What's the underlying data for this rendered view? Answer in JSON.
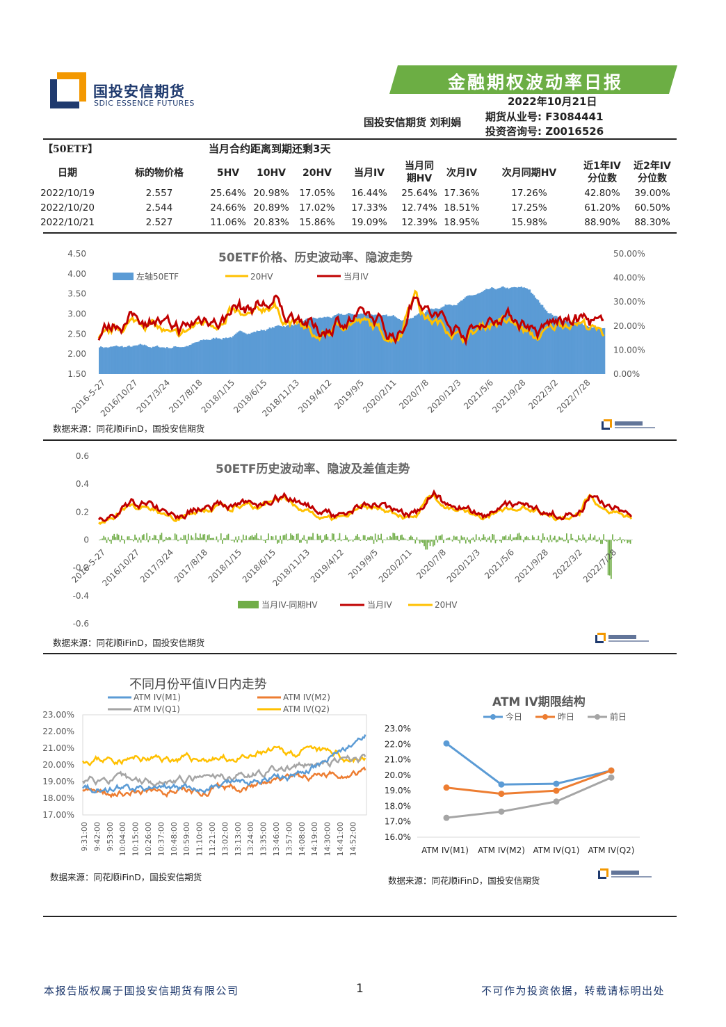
{
  "header": {
    "logo_cn": "国投安信期货",
    "logo_en": "SDIC ESSENCE FUTURES",
    "banner_title": "金融期权波动率日报",
    "date": "2022年10月21日",
    "author": "国投安信期货 刘利娟",
    "license1": "期货从业号: F3084441",
    "license2": "投资咨询号: Z0016526",
    "banner_color": "#6cae44"
  },
  "table": {
    "tag": "【50ETF】",
    "note": "当月合约距离到期还剩3天",
    "headers": [
      "日期",
      "标的物价格",
      "5HV",
      "10HV",
      "20HV",
      "当月IV",
      "当月同期HV",
      "次月IV",
      "次月同期HV",
      "近1年IV分位数",
      "近2年IV分位数"
    ],
    "header_lines": [
      [
        "日期"
      ],
      [
        "标的物价格"
      ],
      [
        "5HV"
      ],
      [
        "10HV"
      ],
      [
        "20HV"
      ],
      [
        "当月IV"
      ],
      [
        "当月同",
        "期HV"
      ],
      [
        "次月IV"
      ],
      [
        "次月同期HV"
      ],
      [
        "近1年IV",
        "分位数"
      ],
      [
        "近2年IV",
        "分位数"
      ]
    ],
    "rows": [
      [
        "2022/10/19",
        "2.557",
        "25.64%",
        "20.98%",
        "17.05%",
        "16.44%",
        "25.64%",
        "17.36%",
        "17.26%",
        "42.80%",
        "39.00%"
      ],
      [
        "2022/10/20",
        "2.544",
        "24.66%",
        "20.89%",
        "17.02%",
        "17.33%",
        "12.74%",
        "18.51%",
        "17.25%",
        "61.20%",
        "60.50%"
      ],
      [
        "2022/10/21",
        "2.527",
        "11.06%",
        "20.83%",
        "15.86%",
        "19.09%",
        "12.39%",
        "18.95%",
        "15.98%",
        "88.90%",
        "88.30%"
      ]
    ]
  },
  "source_text": "数据来源：同花顺iFinD，国投安信期货",
  "chart1": {
    "title": "50ETF价格、历史波动率、隐波走势",
    "legend": [
      "左轴50ETF",
      "20HV",
      "当月IV"
    ],
    "yleft_ticks": [
      "4.50",
      "4.00",
      "3.50",
      "3.00",
      "2.50",
      "2.00",
      "1.50"
    ],
    "yright_ticks": [
      "50.00%",
      "40.00%",
      "30.00%",
      "20.00%",
      "10.00%",
      "0.00%"
    ],
    "x_ticks": [
      "2016-5-27",
      "2016/10/27",
      "2017/3/24",
      "2017/8/18",
      "2018/1/15",
      "2018/6/15",
      "2018/11/13",
      "2019/4/12",
      "2019/9/5",
      "2020/2/11",
      "2020/7/8",
      "2020/12/3",
      "2021/5/6",
      "2021/9/28",
      "2022/3/2",
      "2022/7/28"
    ],
    "colors": {
      "etf": "#5b9bd5",
      "hv20": "#ffc000",
      "iv": "#c00000"
    }
  },
  "chart2": {
    "title": "50ETF历史波动率、隐波及差值走势",
    "legend": [
      "当月IV-同期HV",
      "当月IV",
      "20HV"
    ],
    "y_ticks": [
      "0.6",
      "0.4",
      "0.2",
      "0",
      "-0.2",
      "-0.4",
      "-0.6"
    ],
    "x_ticks": [
      "2016-5-27",
      "2016/10/27",
      "2017/3/24",
      "2017/8/18",
      "2018/1/15",
      "2018/6/15",
      "2018/11/13",
      "2019/4/12",
      "2019/9/5",
      "2020/2/11",
      "2020/7/8",
      "2020/12/3",
      "2021/5/6",
      "2021/9/28",
      "2022/3/2",
      "2022/7/28"
    ],
    "colors": {
      "diff": "#70ad47",
      "iv": "#c00000",
      "hv20": "#ffc000"
    }
  },
  "chart3": {
    "title": "不同月份平值IV日内走势",
    "legend": [
      "ATM IV(M1)",
      "ATM IV(M2)",
      "ATM IV(Q1)",
      "ATM IV(Q2)"
    ],
    "y_ticks": [
      "23.00%",
      "22.00%",
      "21.00%",
      "20.00%",
      "19.00%",
      "18.00%",
      "17.00%"
    ],
    "x_ticks": [
      "9:31:00",
      "9:42:00",
      "9:53:00",
      "10:04:00",
      "10:15:00",
      "10:26:00",
      "10:37:00",
      "10:48:00",
      "10:59:00",
      "11:10:00",
      "11:21:00",
      "13:02:00",
      "13:13:00",
      "13:24:00",
      "13:35:00",
      "13:46:00",
      "13:57:00",
      "14:08:00",
      "14:19:00",
      "14:30:00",
      "14:41:00",
      "14:52:00"
    ],
    "colors": {
      "M1": "#5b9bd5",
      "M2": "#ed7d31",
      "Q1": "#a5a5a5",
      "Q2": "#ffc000"
    }
  },
  "chart_data": [
    {
      "type": "line",
      "title": "ATM IV期限结构",
      "categories": [
        "ATM IV(M1)",
        "ATM IV(M2)",
        "ATM IV(Q1)",
        "ATM IV(Q2)"
      ],
      "series": [
        {
          "name": "今日",
          "values": [
            22.05,
            19.4,
            19.45,
            20.3
          ],
          "color": "#5b9bd5"
        },
        {
          "name": "昨日",
          "values": [
            19.2,
            18.8,
            19.0,
            20.3
          ],
          "color": "#ed7d31"
        },
        {
          "name": "前日",
          "values": [
            17.25,
            17.65,
            18.3,
            19.85
          ],
          "color": "#a5a5a5"
        }
      ],
      "y_ticks": [
        "23.0%",
        "22.0%",
        "21.0%",
        "20.0%",
        "19.0%",
        "18.0%",
        "17.0%",
        "16.0%"
      ],
      "ylim": [
        16,
        23
      ],
      "legend_position": "top"
    }
  ],
  "footer": {
    "left": "本报告版权属于国投安信期货有限公司",
    "page": "1",
    "right": "不可作为投资依据，转载请标明出处"
  }
}
